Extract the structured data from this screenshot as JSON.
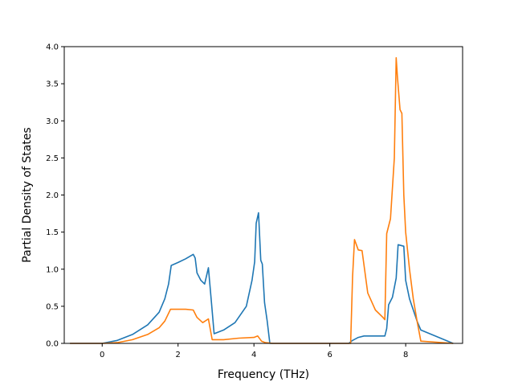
{
  "chart_data": {
    "type": "line",
    "title": "",
    "xlabel": "Frequency (THz)",
    "ylabel": "Partial Density of States",
    "xlim": [
      -1.0,
      9.5
    ],
    "ylim": [
      0.0,
      4.0
    ],
    "xticks": [
      0,
      2,
      4,
      6,
      8
    ],
    "xtick_labels": [
      "0",
      "2",
      "4",
      "6",
      "8"
    ],
    "yticks": [
      0.0,
      0.5,
      1.0,
      1.5,
      2.0,
      2.5,
      3.0,
      3.5,
      4.0
    ],
    "ytick_labels": [
      "0.0",
      "0.5",
      "1.0",
      "1.5",
      "2.0",
      "2.5",
      "3.0",
      "3.5",
      "4.0"
    ],
    "grid": false,
    "legend": false,
    "series": [
      {
        "color": "#1f77b4",
        "x": [
          -0.85,
          -0.2,
          0.0,
          0.4,
          0.8,
          1.2,
          1.5,
          1.65,
          1.75,
          1.82,
          2.0,
          2.2,
          2.4,
          2.45,
          2.5,
          2.6,
          2.7,
          2.8,
          2.88,
          2.95,
          3.2,
          3.5,
          3.8,
          3.95,
          4.02,
          4.06,
          4.12,
          4.18,
          4.22,
          4.28,
          4.35,
          4.42,
          4.48,
          5.0,
          5.5,
          6.0,
          6.5,
          6.6,
          6.75,
          6.9,
          7.2,
          7.45,
          7.5,
          7.55,
          7.65,
          7.75,
          7.8,
          7.95,
          8.0,
          8.1,
          8.2,
          8.3,
          8.4,
          9.25
        ],
        "y": [
          0.0,
          0.0,
          0.0,
          0.04,
          0.12,
          0.25,
          0.42,
          0.6,
          0.8,
          1.05,
          1.09,
          1.14,
          1.2,
          1.15,
          0.95,
          0.85,
          0.8,
          1.02,
          0.55,
          0.13,
          0.18,
          0.28,
          0.5,
          0.85,
          1.1,
          1.62,
          1.76,
          1.12,
          1.07,
          0.55,
          0.3,
          0.0,
          0.0,
          0.0,
          0.0,
          0.0,
          0.0,
          0.04,
          0.08,
          0.1,
          0.1,
          0.1,
          0.2,
          0.52,
          0.62,
          0.88,
          1.33,
          1.31,
          0.85,
          0.6,
          0.45,
          0.3,
          0.18,
          0.0
        ]
      },
      {
        "color": "#ff7f0e",
        "x": [
          -0.85,
          -0.2,
          0.0,
          0.4,
          0.8,
          1.2,
          1.5,
          1.65,
          1.8,
          2.0,
          2.2,
          2.4,
          2.5,
          2.65,
          2.8,
          2.9,
          3.2,
          3.6,
          4.0,
          4.1,
          4.2,
          4.3,
          4.5,
          5.5,
          6.55,
          6.6,
          6.65,
          6.75,
          6.85,
          7.0,
          7.2,
          7.4,
          7.45,
          7.5,
          7.6,
          7.7,
          7.75,
          7.78,
          7.85,
          7.9,
          7.95,
          8.0,
          8.1,
          8.2,
          8.3,
          8.4,
          9.25
        ],
        "y": [
          0.0,
          0.0,
          0.0,
          0.01,
          0.05,
          0.12,
          0.21,
          0.3,
          0.46,
          0.46,
          0.46,
          0.45,
          0.35,
          0.28,
          0.33,
          0.05,
          0.05,
          0.07,
          0.08,
          0.1,
          0.03,
          0.01,
          0.0,
          0.0,
          0.0,
          0.9,
          1.4,
          1.26,
          1.25,
          0.68,
          0.45,
          0.35,
          0.32,
          1.48,
          1.68,
          2.5,
          3.85,
          3.6,
          3.15,
          3.1,
          2.0,
          1.5,
          1.0,
          0.6,
          0.3,
          0.03,
          0.0
        ]
      }
    ]
  }
}
